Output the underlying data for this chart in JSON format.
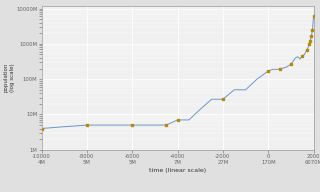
{
  "title": "",
  "xlabel": "time (linear scale)",
  "ylabel": "population\n(log scale)",
  "bg_color": "#e0e0e0",
  "plot_bg_color": "#f0f0f0",
  "line_color": "#6699cc",
  "marker_color": "#bb8800",
  "xlim": [
    -10000,
    2000
  ],
  "ylim_log": [
    2000000,
    12000000000
  ],
  "xticks": [
    -10000,
    -8000,
    -6000,
    -4000,
    -2000,
    0,
    2000
  ],
  "xtick_labels": [
    "-10000\n4M",
    "-8000\n5M",
    "-6000\n5M",
    "-4000\n7M",
    "-2000\n27M",
    "0\n170M",
    "2000\n6070M"
  ],
  "yticks": [
    1000000,
    10000000,
    100000000,
    1000000000,
    10000000000
  ],
  "ytick_labels": [
    "1M",
    "10M",
    "100M",
    "1000M",
    "10000M"
  ],
  "population_data": [
    [
      -10000,
      4000000
    ],
    [
      -9000,
      4500000
    ],
    [
      -8000,
      5000000
    ],
    [
      -7500,
      5000000
    ],
    [
      -7000,
      5000000
    ],
    [
      -6500,
      5000000
    ],
    [
      -6000,
      5000000
    ],
    [
      -5500,
      5000000
    ],
    [
      -5000,
      5000000
    ],
    [
      -4500,
      5000000
    ],
    [
      -4000,
      7000000
    ],
    [
      -3500,
      7000000
    ],
    [
      -3000,
      14000000
    ],
    [
      -2500,
      27000000
    ],
    [
      -2000,
      27000000
    ],
    [
      -1500,
      50000000
    ],
    [
      -1000,
      50000000
    ],
    [
      -500,
      100000000
    ],
    [
      0,
      170000000
    ],
    [
      200,
      190000000
    ],
    [
      400,
      190000000
    ],
    [
      600,
      200000000
    ],
    [
      800,
      220000000
    ],
    [
      1000,
      265000000
    ],
    [
      1200,
      400000000
    ],
    [
      1300,
      432000000
    ],
    [
      1400,
      374000000
    ],
    [
      1500,
      460000000
    ],
    [
      1600,
      500000000
    ],
    [
      1700,
      679000000
    ],
    [
      1750,
      770000000
    ],
    [
      1800,
      987000000
    ],
    [
      1850,
      1200000000
    ],
    [
      1900,
      1625000000
    ],
    [
      1950,
      2516000000
    ],
    [
      1960,
      3018000000
    ],
    [
      1970,
      3700000000
    ],
    [
      1980,
      4434000000
    ],
    [
      1990,
      5264000000
    ],
    [
      2000,
      6070000000
    ]
  ],
  "marker_points": [
    [
      -10000,
      4000000
    ],
    [
      -8000,
      5000000
    ],
    [
      -6000,
      5000000
    ],
    [
      -4500,
      5000000
    ],
    [
      -4000,
      7000000
    ],
    [
      -2000,
      27000000
    ],
    [
      0,
      170000000
    ],
    [
      500,
      200000000
    ],
    [
      1000,
      265000000
    ],
    [
      1500,
      460000000
    ],
    [
      1700,
      679000000
    ],
    [
      1800,
      987000000
    ],
    [
      1850,
      1200000000
    ],
    [
      1900,
      1625000000
    ],
    [
      1950,
      2516000000
    ],
    [
      2000,
      6070000000
    ]
  ]
}
